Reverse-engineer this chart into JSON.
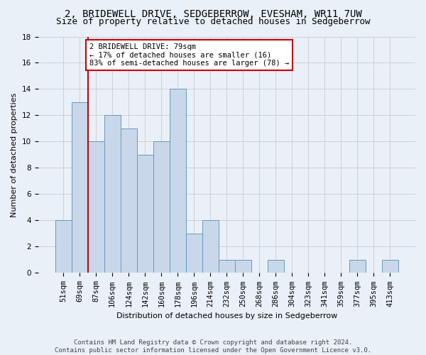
{
  "title1": "2, BRIDEWELL DRIVE, SEDGEBERROW, EVESHAM, WR11 7UW",
  "title2": "Size of property relative to detached houses in Sedgeberrow",
  "xlabel": "Distribution of detached houses by size in Sedgeberrow",
  "ylabel": "Number of detached properties",
  "bar_labels": [
    "51sqm",
    "69sqm",
    "87sqm",
    "106sqm",
    "124sqm",
    "142sqm",
    "160sqm",
    "178sqm",
    "196sqm",
    "214sqm",
    "232sqm",
    "250sqm",
    "268sqm",
    "286sqm",
    "304sqm",
    "323sqm",
    "341sqm",
    "359sqm",
    "377sqm",
    "395sqm",
    "413sqm"
  ],
  "bar_values": [
    4,
    13,
    10,
    12,
    11,
    9,
    10,
    14,
    3,
    4,
    1,
    1,
    0,
    1,
    0,
    0,
    0,
    0,
    1,
    0,
    1
  ],
  "bar_color": "#c8d8ea",
  "bar_edge_color": "#6699bb",
  "property_line_x": 1.5,
  "annotation_text": "2 BRIDEWELL DRIVE: 79sqm\n← 17% of detached houses are smaller (16)\n83% of semi-detached houses are larger (78) →",
  "annotation_box_color": "#ffffff",
  "annotation_box_edge": "#cc0000",
  "vline_color": "#cc0000",
  "yticks": [
    0,
    2,
    4,
    6,
    8,
    10,
    12,
    14,
    16,
    18
  ],
  "ylim": [
    0,
    18
  ],
  "footnote": "Contains HM Land Registry data © Crown copyright and database right 2024.\nContains public sector information licensed under the Open Government Licence v3.0.",
  "grid_color": "#cccccc",
  "bg_color": "#eaf0f8",
  "title_fontsize": 10,
  "subtitle_fontsize": 9,
  "axis_label_fontsize": 8,
  "tick_fontsize": 7.5,
  "footnote_fontsize": 6.5
}
